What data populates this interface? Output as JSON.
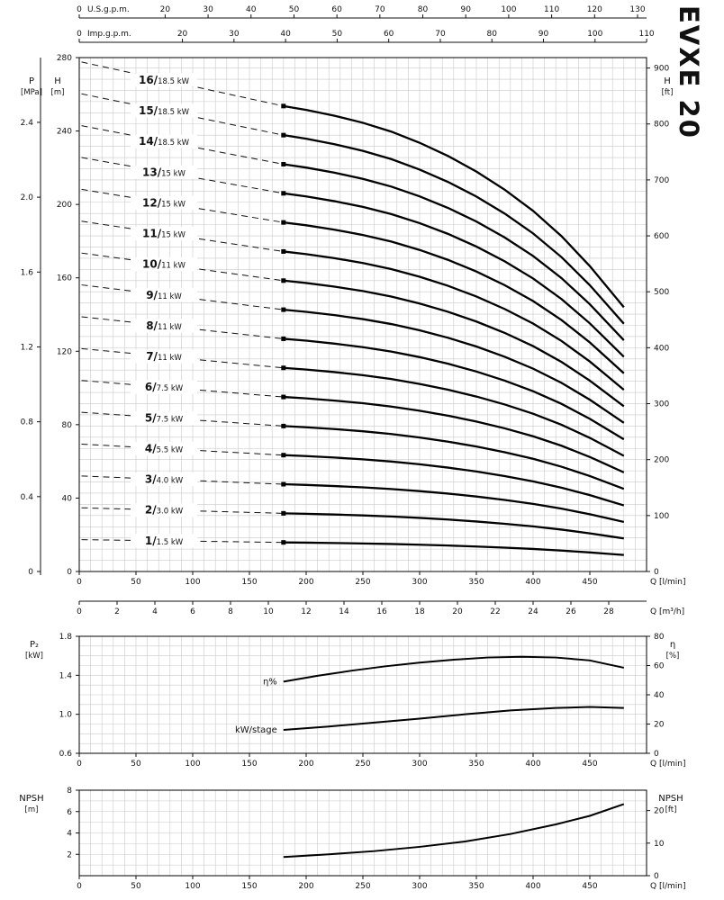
{
  "page": {
    "title_vertical": "EVXE 20",
    "bg": "#ffffff",
    "ink": "#111111",
    "grid_color": "#c9c9c9"
  },
  "axis_titles": {
    "pressure": [
      "P",
      "[MPa]"
    ],
    "head_m": [
      "H",
      "[m]"
    ],
    "head_ft": [
      "H",
      "[ft]"
    ],
    "power": [
      "P₂",
      "[kW]"
    ],
    "efficiency": [
      "η",
      "[%]"
    ],
    "npsh_m": [
      "NPSH",
      "[m]"
    ],
    "npsh_ft": [
      "NPSH",
      "[ft]"
    ]
  },
  "top_axes": [
    {
      "name": "us-gpm-axis",
      "unit_label": "U.S.g.p.m.",
      "zero_label": "0",
      "ticks": [
        "20",
        "30",
        "40",
        "50",
        "60",
        "70",
        "80",
        "90",
        "100",
        "110",
        "120",
        "130"
      ],
      "lpm_per_unit": 3.785
    },
    {
      "name": "imp-gpm-axis",
      "unit_label": "Imp.g.p.m.",
      "zero_label": "0",
      "ticks": [
        "20",
        "30",
        "40",
        "50",
        "60",
        "70",
        "80",
        "90",
        "100",
        "110"
      ],
      "lpm_per_unit": 4.546
    }
  ],
  "chart_data": [
    {
      "id": "head-flow",
      "type": "line",
      "title": "EVXE 20 head vs flow, 1-16 stages",
      "xlabel": "Q [l/min]",
      "xlabel2": "Q [m³/h]",
      "x_lpm_range": [
        0,
        500
      ],
      "y_m_range": [
        0,
        280
      ],
      "x_ticks_lpm": [
        "0",
        "50",
        "100",
        "150",
        "200",
        "250",
        "300",
        "350",
        "400",
        "450"
      ],
      "x_ticks_m3h": [
        "0",
        "2",
        "4",
        "6",
        "8",
        "10",
        "12",
        "14",
        "16",
        "18",
        "20",
        "22",
        "24",
        "26",
        "28"
      ],
      "lpm_per_m3h": 16.667,
      "y_ticks_m": [
        "0",
        "40",
        "80",
        "120",
        "160",
        "200",
        "240",
        "280"
      ],
      "y_ticks_mpa": [
        "0",
        "0.4",
        "0.8",
        "1.2",
        "1.6",
        "2.0",
        "2.4"
      ],
      "m_per_mpa": 101.97,
      "y_ticks_ft": [
        "0",
        "100",
        "200",
        "300",
        "400",
        "500",
        "600",
        "700",
        "800",
        "900"
      ],
      "m_per_ft": 0.3048,
      "grid": true,
      "legend_position": "left-inline-leaders",
      "q_lpm": [
        180,
        200,
        225,
        250,
        275,
        300,
        325,
        350,
        375,
        400,
        425,
        450,
        465,
        480
      ],
      "head_per_stage_m": [
        15.85,
        15.72,
        15.52,
        15.28,
        14.98,
        14.6,
        14.15,
        13.62,
        13.0,
        12.28,
        11.42,
        10.4,
        9.7,
        9.0
      ],
      "shutoff_per_stage_m": 17.35,
      "values_formula": "H(Q) = stages × head_per_stage_m(Q)",
      "series": [
        {
          "stages": 16,
          "name": "16/18.5 kW",
          "power": "18.5 kW"
        },
        {
          "stages": 15,
          "name": "15/18.5 kW",
          "power": "18.5 kW"
        },
        {
          "stages": 14,
          "name": "14/18.5 kW",
          "power": "18.5 kW"
        },
        {
          "stages": 13,
          "name": "13/15 kW",
          "power": "15 kW"
        },
        {
          "stages": 12,
          "name": "12/15 kW",
          "power": "15 kW"
        },
        {
          "stages": 11,
          "name": "11/15 kW",
          "power": "15 kW"
        },
        {
          "stages": 10,
          "name": "10/11 kW",
          "power": "11 kW"
        },
        {
          "stages": 9,
          "name": "9/11 kW",
          "power": "11 kW"
        },
        {
          "stages": 8,
          "name": "8/11 kW",
          "power": "11 kW"
        },
        {
          "stages": 7,
          "name": "7/11 kW",
          "power": "11 kW"
        },
        {
          "stages": 6,
          "name": "6/7.5 kW",
          "power": "7.5 kW"
        },
        {
          "stages": 5,
          "name": "5/7.5 kW",
          "power": "7.5 kW"
        },
        {
          "stages": 4,
          "name": "4/5.5 kW",
          "power": "5.5 kW"
        },
        {
          "stages": 3,
          "name": "3/4.0 kW",
          "power": "4.0 kW"
        },
        {
          "stages": 2,
          "name": "2/3.0 kW",
          "power": "3.0 kW"
        },
        {
          "stages": 1,
          "name": "1/1.5 kW",
          "power": "1.5 kW"
        }
      ]
    },
    {
      "id": "power-efficiency",
      "type": "line",
      "xlabel": "Q [l/min]",
      "x_lpm_range": [
        0,
        500
      ],
      "x_ticks_lpm": [
        "0",
        "50",
        "100",
        "150",
        "200",
        "250",
        "300",
        "350",
        "400",
        "450"
      ],
      "left_axis": {
        "label": "P₂ [kW]",
        "range": [
          0.6,
          1.8
        ],
        "ticks": [
          "0.6",
          "1.0",
          "1.4",
          "1.8"
        ],
        "minor_step": 0.1
      },
      "right_axis": {
        "label": "η [%]",
        "range": [
          0,
          80
        ],
        "ticks": [
          "0",
          "20",
          "40",
          "60",
          "80"
        ]
      },
      "grid": true,
      "series": [
        {
          "name": "η%",
          "axis": "right",
          "x_lpm": [
            180,
            210,
            240,
            270,
            300,
            330,
            360,
            390,
            420,
            450,
            480
          ],
          "values": [
            49,
            53,
            56.5,
            59.5,
            62,
            64,
            65.5,
            66,
            65.5,
            63.5,
            58.5
          ]
        },
        {
          "name": "kW/stage",
          "axis": "left",
          "x_lpm": [
            180,
            220,
            260,
            300,
            340,
            380,
            420,
            450,
            480
          ],
          "values": [
            0.84,
            0.875,
            0.915,
            0.955,
            1.0,
            1.04,
            1.065,
            1.075,
            1.065
          ]
        }
      ]
    },
    {
      "id": "npsh",
      "type": "line",
      "xlabel": "Q [l/min]",
      "x_lpm_range": [
        0,
        500
      ],
      "x_ticks_lpm": [
        "0",
        "50",
        "100",
        "150",
        "200",
        "250",
        "300",
        "350",
        "400",
        "450"
      ],
      "left_axis": {
        "label": "NPSH [m]",
        "range": [
          0,
          8
        ],
        "ticks": [
          "2",
          "4",
          "6",
          "8"
        ],
        "minor_step": 1
      },
      "right_axis_ft": {
        "label": "NPSH [ft]",
        "ticks": [
          "0",
          "10",
          "20"
        ],
        "m_per_ft": 0.3048
      },
      "grid": true,
      "series": [
        {
          "name": "NPSH",
          "x_lpm": [
            180,
            220,
            260,
            300,
            340,
            380,
            420,
            450,
            480
          ],
          "values": [
            1.75,
            2.0,
            2.3,
            2.7,
            3.2,
            3.9,
            4.8,
            5.6,
            6.7
          ]
        }
      ]
    }
  ]
}
